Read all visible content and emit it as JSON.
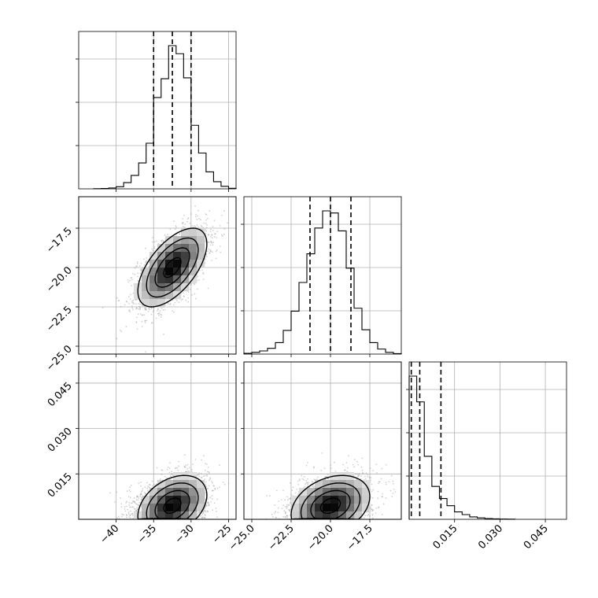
{
  "chart_data": {
    "type": "corner",
    "title": "",
    "parameters": [
      {
        "index": 0,
        "axis_range": [
          -45,
          -24
        ]
      },
      {
        "index": 1,
        "axis_range": [
          -25.5,
          -15.5
        ],
        "tick_values": [
          -25.0,
          -22.5,
          -20.0,
          -17.5
        ],
        "tick_labels": [
          "−25.0",
          "−22.5",
          "−20.0",
          "−17.5"
        ]
      },
      {
        "index": 2,
        "axis_range": [
          0.0,
          0.052
        ],
        "tick_values": [
          0.015,
          0.03,
          0.045
        ],
        "tick_labels": [
          "0.015",
          "0.030",
          "0.045"
        ]
      }
    ],
    "param0_ticks": {
      "values": [
        -40,
        -35,
        -30,
        -25
      ],
      "labels": [
        "−40",
        "−35",
        "−30",
        "−25"
      ]
    },
    "quantile_lines": [
      [
        -35.0,
        -32.5,
        -30.0
      ],
      [
        -21.3,
        -20.0,
        -18.7
      ],
      [
        0.0007,
        0.0035,
        0.0105
      ]
    ],
    "histograms": [
      {
        "bin_edges": [
          -43,
          -42,
          -41,
          -40,
          -39,
          -38,
          -37,
          -36,
          -35,
          -34,
          -33,
          -32,
          -31,
          -30,
          -29,
          -28,
          -27,
          -26,
          -25,
          -24
        ],
        "counts": [
          1,
          2,
          5,
          12,
          35,
          75,
          145,
          255,
          510,
          615,
          800,
          755,
          620,
          355,
          200,
          95,
          40,
          14,
          3
        ]
      },
      {
        "bin_edges": [
          -25.5,
          -25.0,
          -24.5,
          -24.0,
          -23.5,
          -23.0,
          -22.5,
          -22.0,
          -21.5,
          -21.0,
          -20.5,
          -20.0,
          -19.5,
          -19.0,
          -18.5,
          -18.0,
          -17.5,
          -17.0,
          -16.5,
          -16.0,
          -15.5
        ],
        "counts": [
          5,
          12,
          22,
          40,
          80,
          165,
          300,
          500,
          700,
          880,
          1000,
          985,
          860,
          600,
          320,
          170,
          80,
          35,
          12,
          3
        ]
      },
      {
        "bin_edges": [
          0.0,
          0.0025,
          0.005,
          0.0075,
          0.01,
          0.0125,
          0.015,
          0.0175,
          0.02,
          0.0225,
          0.025,
          0.0275,
          0.03,
          0.0325,
          0.035
        ],
        "counts": [
          1000,
          820,
          440,
          230,
          145,
          95,
          52,
          33,
          17,
          10,
          5,
          3,
          2,
          1
        ]
      }
    ],
    "density_2d": [
      {
        "x_param": 0,
        "y_param": 1,
        "mean": [
          -32.5,
          -20.0
        ],
        "sd": [
          2.3,
          1.25
        ],
        "correlation": 0.6,
        "contour_levels_sigma": [
          0.5,
          1.0,
          1.5,
          2.0
        ]
      },
      {
        "x_param": 0,
        "y_param": 2,
        "mean": [
          -32.5,
          0.0045
        ],
        "sd": [
          2.3,
          0.005
        ],
        "correlation": 0.35,
        "contour_levels_sigma": [
          0.5,
          1.0,
          1.5,
          2.0
        ]
      },
      {
        "x_param": 1,
        "y_param": 2,
        "mean": [
          -20.0,
          0.0045
        ],
        "sd": [
          1.25,
          0.005
        ],
        "correlation": 0.3,
        "contour_levels_sigma": [
          0.5,
          1.0,
          1.5,
          2.0
        ]
      }
    ],
    "grid": true,
    "colors": {
      "line": "#000000",
      "grid": "#b0b0b0",
      "points": "#9a9a9a"
    }
  }
}
